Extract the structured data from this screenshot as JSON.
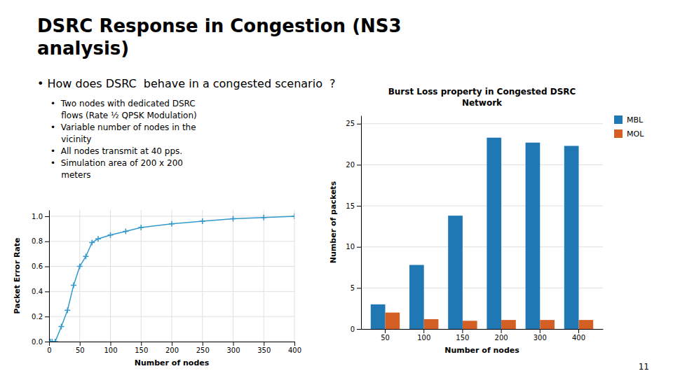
{
  "title": "DSRC Response in Congestion (NS3\nanalysis)",
  "subtitle": "• How does DSRC  behave in a congested scenario  ?",
  "annotations": [
    "•  Two nodes with dedicated DSRC\n    flows (Rate ½ QPSK Modulation)",
    "•  Variable number of nodes in the\n    vicinity",
    "•  All nodes transmit at 40 pps.",
    "•  Simulation area of 200 x 200\n    meters"
  ],
  "slide_number": "11",
  "chart_data": [
    {
      "type": "line",
      "xlabel": "Number of nodes",
      "ylabel": "Packet Error Rate",
      "x": [
        2,
        5,
        10,
        20,
        30,
        40,
        50,
        60,
        70,
        80,
        100,
        125,
        150,
        200,
        250,
        300,
        350,
        400
      ],
      "series": [
        {
          "values": [
            0.0,
            0.0,
            0.0,
            0.12,
            0.25,
            0.45,
            0.6,
            0.68,
            0.79,
            0.82,
            0.85,
            0.88,
            0.91,
            0.94,
            0.96,
            0.98,
            0.99,
            1.0
          ],
          "color": "#3399cc",
          "marker": "plus"
        }
      ],
      "xlim": [
        0,
        400
      ],
      "ylim": [
        0,
        1.05
      ],
      "xticks": [
        0,
        50,
        100,
        150,
        200,
        250,
        300,
        350,
        400
      ],
      "yticks": [
        {
          "value": 0,
          "label": "0.0"
        },
        0.2,
        0.4,
        0.6,
        0.8,
        {
          "value": 1,
          "label": "1.0"
        }
      ],
      "grid": true
    },
    {
      "type": "bar",
      "title": "Burst Loss property in Congested DSRC\nNetwork",
      "xlabel": "Number of nodes",
      "ylabel": "Number of packets",
      "categories": [
        "50",
        "100",
        "150",
        "200",
        "300",
        "400"
      ],
      "series": [
        {
          "name": "MBL",
          "color": "#1f77b4",
          "values": [
            3.0,
            7.8,
            13.8,
            23.3,
            22.7,
            22.3
          ]
        },
        {
          "name": "MOL",
          "color": "#d45f25",
          "values": [
            2.0,
            1.2,
            1.0,
            1.1,
            1.1,
            1.1
          ]
        }
      ],
      "ylim": [
        0,
        26
      ],
      "yticks": [
        0,
        5,
        10,
        15,
        20,
        25
      ],
      "grid": "y",
      "legend": "upper right"
    }
  ]
}
